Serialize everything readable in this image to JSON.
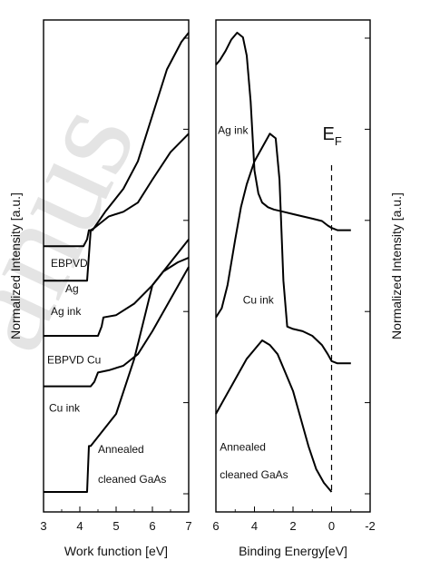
{
  "chart_data": [
    {
      "type": "line",
      "xlabel": "Work function [eV]",
      "ylabel": "Normalized Intensity [a.u.]",
      "xlim": [
        3,
        7
      ],
      "ylim": [
        0,
        1
      ],
      "xticks": [
        "3",
        "4",
        "5",
        "6",
        "7"
      ],
      "series": [
        {
          "name": "EBPVD Ag",
          "x": [
            3.0,
            4.1,
            4.2,
            4.25,
            4.35,
            4.7,
            5.2,
            5.6,
            6.0,
            6.4,
            6.8,
            7.0
          ],
          "y": [
            0.535,
            0.535,
            0.55,
            0.57,
            0.57,
            0.61,
            0.66,
            0.72,
            0.82,
            0.92,
            0.98,
            1.0
          ]
        },
        {
          "name": "Ag ink",
          "x": [
            3.0,
            4.2,
            4.3,
            4.4,
            4.8,
            5.2,
            5.6,
            6.0,
            6.5,
            7.0
          ],
          "y": [
            0.46,
            0.46,
            0.57,
            0.575,
            0.6,
            0.61,
            0.63,
            0.68,
            0.74,
            0.78
          ]
        },
        {
          "name": "EBPVD Cu",
          "x": [
            3.0,
            4.5,
            4.6,
            4.65,
            5.0,
            5.5,
            6.0,
            6.5,
            7.0
          ],
          "y": [
            0.34,
            0.34,
            0.36,
            0.38,
            0.385,
            0.41,
            0.45,
            0.5,
            0.55
          ]
        },
        {
          "name": "Cu ink",
          "x": [
            3.0,
            4.3,
            4.4,
            4.5,
            4.8,
            5.2,
            5.6,
            6.0,
            6.5,
            7.0
          ],
          "y": [
            0.23,
            0.23,
            0.24,
            0.26,
            0.265,
            0.275,
            0.3,
            0.35,
            0.42,
            0.49
          ]
        },
        {
          "name": "Annealed cleaned GaAs",
          "x": [
            3.0,
            4.2,
            4.25,
            4.3,
            4.5,
            5.0,
            5.5,
            6.0,
            6.3,
            6.7,
            7.0
          ],
          "y": [
            0.0,
            0.0,
            0.1,
            0.1,
            0.12,
            0.17,
            0.29,
            0.45,
            0.48,
            0.5,
            0.51
          ]
        }
      ],
      "labels": [
        {
          "text": "EBPVD",
          "x": 3.2,
          "y": 0.49
        },
        {
          "text": "Ag",
          "x": 3.6,
          "y": 0.435
        },
        {
          "text": "Ag ink",
          "x": 3.2,
          "y": 0.385
        },
        {
          "text": "EBPVD Cu",
          "x": 3.1,
          "y": 0.28
        },
        {
          "text": "Cu ink",
          "x": 3.15,
          "y": 0.175
        },
        {
          "text": "Annealed",
          "x": 4.5,
          "y": 0.085
        },
        {
          "text": "cleaned GaAs",
          "x": 4.5,
          "y": 0.02
        }
      ]
    },
    {
      "type": "line",
      "xlabel": "Binding Energy[eV]",
      "ylabel": "Normalized Intensity [a.u.]",
      "xlim": [
        6,
        -2
      ],
      "ylim": [
        0,
        1
      ],
      "xticks": [
        "6",
        "4",
        "2",
        "0",
        "-2"
      ],
      "fermi_level_label": "E",
      "fermi_level_sub": "F",
      "fermi_level_x": 0,
      "series": [
        {
          "name": "Ag ink",
          "x": [
            6.0,
            5.8,
            5.5,
            5.2,
            4.9,
            4.6,
            4.4,
            4.2,
            4.0,
            3.8,
            3.6,
            3.3,
            3.0,
            2.5,
            2.0,
            1.5,
            1.0,
            0.5,
            0.2,
            0.0,
            -0.3,
            -1.0
          ],
          "y": [
            0.93,
            0.94,
            0.96,
            0.985,
            1.0,
            0.99,
            0.95,
            0.85,
            0.7,
            0.65,
            0.63,
            0.62,
            0.615,
            0.61,
            0.605,
            0.6,
            0.595,
            0.59,
            0.58,
            0.575,
            0.57,
            0.57
          ]
        },
        {
          "name": "Cu ink",
          "x": [
            6.0,
            5.7,
            5.4,
            5.0,
            4.7,
            4.4,
            4.0,
            3.6,
            3.2,
            2.9,
            2.7,
            2.5,
            2.3,
            2.0,
            1.5,
            1.0,
            0.5,
            0.2,
            0.0,
            -0.3,
            -1.0
          ],
          "y": [
            0.38,
            0.4,
            0.45,
            0.55,
            0.62,
            0.67,
            0.72,
            0.75,
            0.78,
            0.77,
            0.68,
            0.46,
            0.36,
            0.355,
            0.35,
            0.34,
            0.32,
            0.3,
            0.285,
            0.28,
            0.28
          ]
        },
        {
          "name": "Annealed cleaned GaAs",
          "x": [
            6.0,
            5.6,
            5.2,
            4.8,
            4.4,
            4.0,
            3.6,
            3.2,
            2.8,
            2.4,
            2.0,
            1.6,
            1.2,
            0.8,
            0.4,
            0.1,
            0.0
          ],
          "y": [
            0.17,
            0.2,
            0.23,
            0.26,
            0.29,
            0.31,
            0.33,
            0.32,
            0.3,
            0.26,
            0.22,
            0.16,
            0.1,
            0.05,
            0.02,
            0.005,
            0.0
          ]
        }
      ],
      "labels": [
        {
          "text": "Ag ink",
          "x": 5.9,
          "y": 0.78
        },
        {
          "text": "Cu ink",
          "x": 4.6,
          "y": 0.41
        },
        {
          "text": "Annealed",
          "x": 5.8,
          "y": 0.09
        },
        {
          "text": "cleaned GaAs",
          "x": 5.8,
          "y": 0.03
        }
      ]
    }
  ],
  "watermark_text": "anus"
}
